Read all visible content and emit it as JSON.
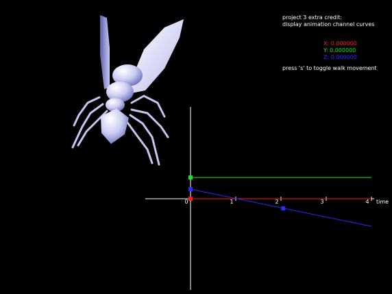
{
  "hud": {
    "title_line1": "project 3 extra credit:",
    "title_line2": "display animation channel curves",
    "x_readout": "X: 0.000000",
    "y_readout": "Y: 0.000000",
    "z_readout": "Z: 0.000000",
    "hint": "press 's' to toggle walk movement"
  },
  "colors": {
    "x_channel": "#ff1a1a",
    "y_channel": "#22e022",
    "z_channel": "#2a2aff",
    "axes": "#ffffff",
    "background": "#000000",
    "model": "#d8dcff"
  },
  "chart_data": {
    "type": "line",
    "xlabel": "time",
    "ylabel": "",
    "x_ticks": [
      "0",
      "1",
      "2",
      "3",
      "4"
    ],
    "series": [
      {
        "name": "X",
        "x": [
          0,
          4
        ],
        "y": [
          0,
          0
        ],
        "keys": [
          [
            0,
            0
          ]
        ]
      },
      {
        "name": "Y",
        "x": [
          0,
          4
        ],
        "y": [
          1.0,
          1.0
        ],
        "keys": [
          [
            0,
            1.0
          ]
        ]
      },
      {
        "name": "Z",
        "x": [
          0,
          4
        ],
        "y": [
          0.45,
          -1.3
        ],
        "keys": [
          [
            0,
            0.45
          ],
          [
            2.05,
            -0.45
          ]
        ]
      }
    ],
    "xlim": [
      -1,
      4
    ],
    "ylim": [
      -1.9,
      2.1
    ]
  },
  "model": {
    "icon": "wasp-3d-model"
  }
}
